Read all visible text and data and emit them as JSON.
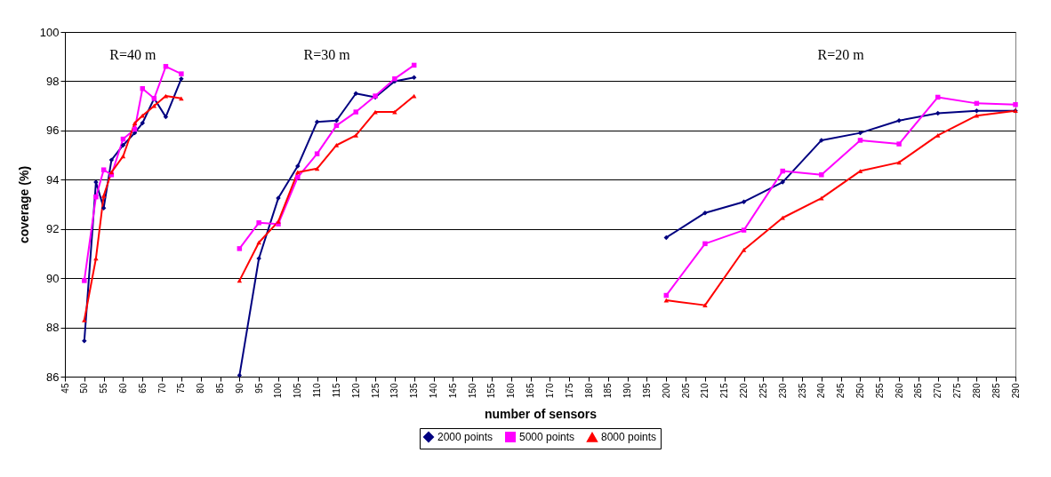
{
  "chart_data": {
    "type": "line",
    "xlabel": "number of sensors",
    "ylabel": "coverage (%)",
    "xlim": [
      45,
      290
    ],
    "xticks": [
      45,
      50,
      55,
      60,
      65,
      70,
      75,
      80,
      85,
      90,
      95,
      100,
      105,
      110,
      115,
      120,
      125,
      130,
      135,
      140,
      145,
      150,
      155,
      160,
      165,
      170,
      175,
      180,
      185,
      190,
      195,
      200,
      205,
      210,
      215,
      220,
      225,
      230,
      235,
      240,
      245,
      250,
      255,
      260,
      265,
      270,
      275,
      280,
      285,
      290
    ],
    "ylim": [
      86,
      100
    ],
    "yticks": [
      86,
      88,
      90,
      92,
      94,
      96,
      98,
      100
    ],
    "grid": "y",
    "legend": "bottom",
    "line_style": "solid",
    "x": [
      50,
      53,
      55,
      57,
      60,
      63,
      65,
      68,
      71,
      75,
      null,
      90,
      95,
      100,
      105,
      110,
      115,
      120,
      125,
      130,
      135,
      null,
      200,
      210,
      220,
      230,
      240,
      250,
      260,
      270,
      280,
      290
    ],
    "series": [
      {
        "name": "2000 points",
        "color": "#000080",
        "marker": "diamond",
        "values": [
          87.45,
          93.9,
          92.85,
          94.8,
          95.4,
          95.9,
          96.3,
          97.3,
          96.55,
          98.1,
          null,
          86.05,
          90.8,
          93.25,
          94.55,
          96.35,
          96.4,
          97.5,
          97.35,
          98.0,
          98.15,
          null,
          91.65,
          92.65,
          93.1,
          93.9,
          95.6,
          95.9,
          96.4,
          96.7,
          96.8,
          96.8
        ]
      },
      {
        "name": "5000 points",
        "color": "#ff00ff",
        "marker": "square",
        "values": [
          89.9,
          93.3,
          94.4,
          94.2,
          95.65,
          96.05,
          97.7,
          97.3,
          98.6,
          98.3,
          null,
          91.2,
          92.25,
          92.2,
          94.1,
          95.05,
          96.2,
          96.75,
          97.4,
          98.1,
          98.65,
          null,
          89.3,
          91.4,
          91.95,
          94.35,
          94.2,
          95.6,
          95.45,
          97.35,
          97.1,
          97.05
        ]
      },
      {
        "name": "8000 points",
        "color": "#ff0000",
        "marker": "triangle",
        "values": [
          88.3,
          90.8,
          93.35,
          94.3,
          94.95,
          96.3,
          96.6,
          97.0,
          97.4,
          97.3,
          null,
          89.9,
          91.45,
          92.3,
          94.3,
          94.45,
          95.4,
          95.8,
          96.75,
          96.75,
          97.4,
          null,
          89.1,
          88.9,
          91.15,
          92.45,
          93.25,
          94.35,
          94.7,
          95.8,
          96.6,
          96.8
        ]
      }
    ],
    "annotations": [
      "R=40 m",
      "R=30 m",
      "R=20 m"
    ]
  }
}
